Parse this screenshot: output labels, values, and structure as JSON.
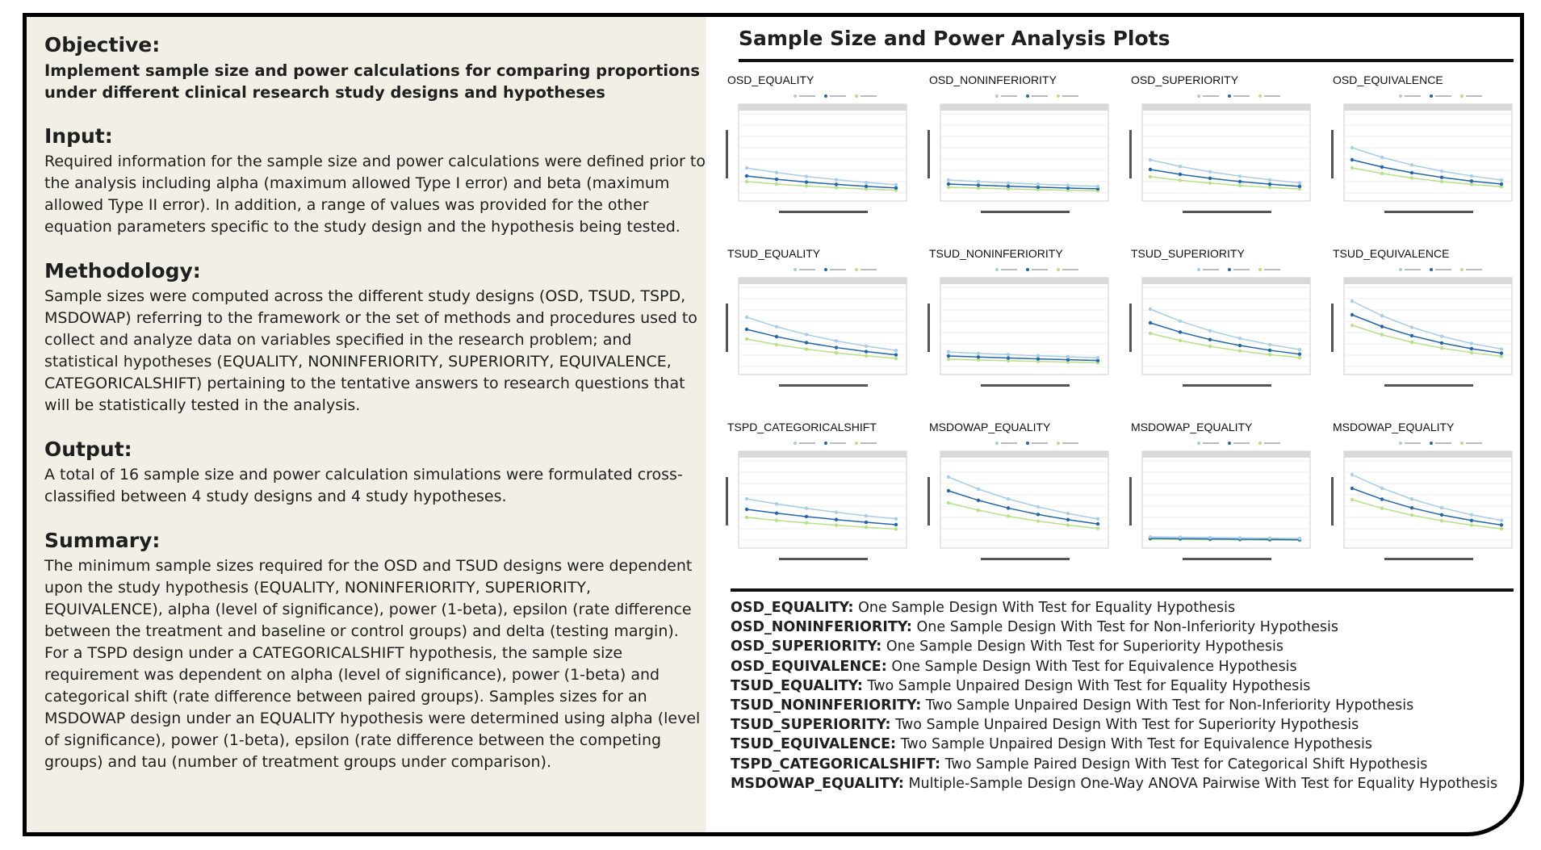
{
  "left": {
    "objective": {
      "heading": "Objective:",
      "text": "Implement sample size and power calculations for comparing proportions under different clinical research study designs and hypotheses"
    },
    "input": {
      "heading": "Input:",
      "text": "Required information for the sample size and power calculations were defined prior to the analysis including alpha (maximum allowed Type I error) and beta (maximum allowed Type II error). In addition, a range of values was provided for the other equation parameters specific to the study design and the hypothesis being tested."
    },
    "methodology": {
      "heading": "Methodology:",
      "text": "Sample sizes were computed across the different study designs (OSD, TSUD, TSPD, MSDOWAP) referring to the framework or the set of methods and procedures used to collect and analyze data on variables specified in the research problem; and statistical hypotheses (EQUALITY, NONINFERIORITY, SUPERIORITY, EQUIVALENCE, CATEGORICALSHIFT) pertaining to the tentative answers to research questions that will be statistically tested in the analysis."
    },
    "output": {
      "heading": "Output:",
      "text": "A total of 16 sample size and power calculation simulations were formulated cross-classified between 4 study designs and 4 study hypotheses."
    },
    "summary": {
      "heading": "Summary:",
      "text": "The minimum sample sizes required for the OSD and TSUD designs were dependent upon the study hypothesis (EQUALITY, NONINFERIORITY, SUPERIORITY, EQUIVALENCE), alpha (level of significance), power (1-beta), epsilon (rate difference between the treatment and baseline or control groups) and delta (testing margin). For a TSPD design under a CATEGORICALSHIFT hypothesis, the sample size requirement was dependent on alpha (level of significance), power (1-beta) and categorical shift (rate difference between paired groups). Samples sizes for an MSDOWAP design under an EQUALITY hypothesis were determined using alpha (level of significance), power (1-beta), epsilon (rate difference between the competing groups) and tau (number of treatment groups under comparison)."
    }
  },
  "right": {
    "title": "Sample Size and Power Analysis Plots",
    "plots": [
      {
        "name": "OSD_EQUALITY",
        "s": [
          0.35,
          0.25,
          0.18,
          0.9
        ]
      },
      {
        "name": "OSD_NONINFERIORITY",
        "s": [
          0.2,
          0.15,
          0.11,
          0.5
        ]
      },
      {
        "name": "OSD_SUPERIORITY",
        "s": [
          0.45,
          0.33,
          0.24,
          1.0
        ]
      },
      {
        "name": "OSD_EQUIVALENCE",
        "s": [
          0.6,
          0.45,
          0.35,
          1.1
        ]
      },
      {
        "name": "TSUD_EQUALITY",
        "s": [
          0.65,
          0.5,
          0.38,
          1.0
        ]
      },
      {
        "name": "TSUD_NONINFERIORITY",
        "s": [
          0.22,
          0.17,
          0.13,
          0.4
        ]
      },
      {
        "name": "TSUD_SUPERIORITY",
        "s": [
          0.75,
          0.58,
          0.45,
          1.1
        ]
      },
      {
        "name": "TSUD_EQUIVALENCE",
        "s": [
          0.85,
          0.68,
          0.55,
          1.2
        ]
      },
      {
        "name": "TSPD_CATEGORICALSHIFT",
        "s": [
          0.55,
          0.42,
          0.32,
          0.6
        ]
      },
      {
        "name": "MSDOWAP_EQUALITY",
        "s": [
          0.82,
          0.65,
          0.5,
          1.0
        ]
      },
      {
        "name": "MSDOWAP_EQUALITY",
        "s": [
          0.08,
          0.06,
          0.05,
          0.3
        ]
      },
      {
        "name": "MSDOWAP_EQUALITY",
        "s": [
          0.85,
          0.68,
          0.54,
          1.1
        ]
      }
    ],
    "legend": [
      {
        "key": "OSD_EQUALITY:",
        "desc": "One Sample Design With Test for Equality Hypothesis"
      },
      {
        "key": "OSD_NONINFERIORITY:",
        "desc": "One Sample Design With Test for Non-Inferiority Hypothesis"
      },
      {
        "key": "OSD_SUPERIORITY:",
        "desc": "One Sample Design With Test for Superiority Hypothesis"
      },
      {
        "key": "OSD_EQUIVALENCE:",
        "desc": "One Sample Design With Test for Equivalence Hypothesis"
      },
      {
        "key": "TSUD_EQUALITY:",
        "desc": "Two Sample Unpaired Design With Test for Equality Hypothesis"
      },
      {
        "key": "TSUD_NONINFERIORITY:",
        "desc": "Two Sample Unpaired Design With Test for Non-Inferiority Hypothesis"
      },
      {
        "key": "TSUD_SUPERIORITY:",
        "desc": "Two Sample Unpaired Design With Test for Superiority Hypothesis"
      },
      {
        "key": "TSUD_EQUIVALENCE:",
        "desc": "Two Sample Unpaired Design With Test for Equivalence Hypothesis"
      },
      {
        "key": "TSPD_CATEGORICALSHIFT:",
        "desc": "Two Sample Paired Design With Test for Categorical Shift Hypothesis"
      },
      {
        "key": "MSDOWAP_EQUALITY:",
        "desc": "Multiple-Sample Design One-Way ANOVA Pairwise With Test for Equality Hypothesis"
      }
    ]
  },
  "colors": {
    "power70": "#a8cde6",
    "power80": "#2166ac",
    "power90": "#b8e186"
  }
}
